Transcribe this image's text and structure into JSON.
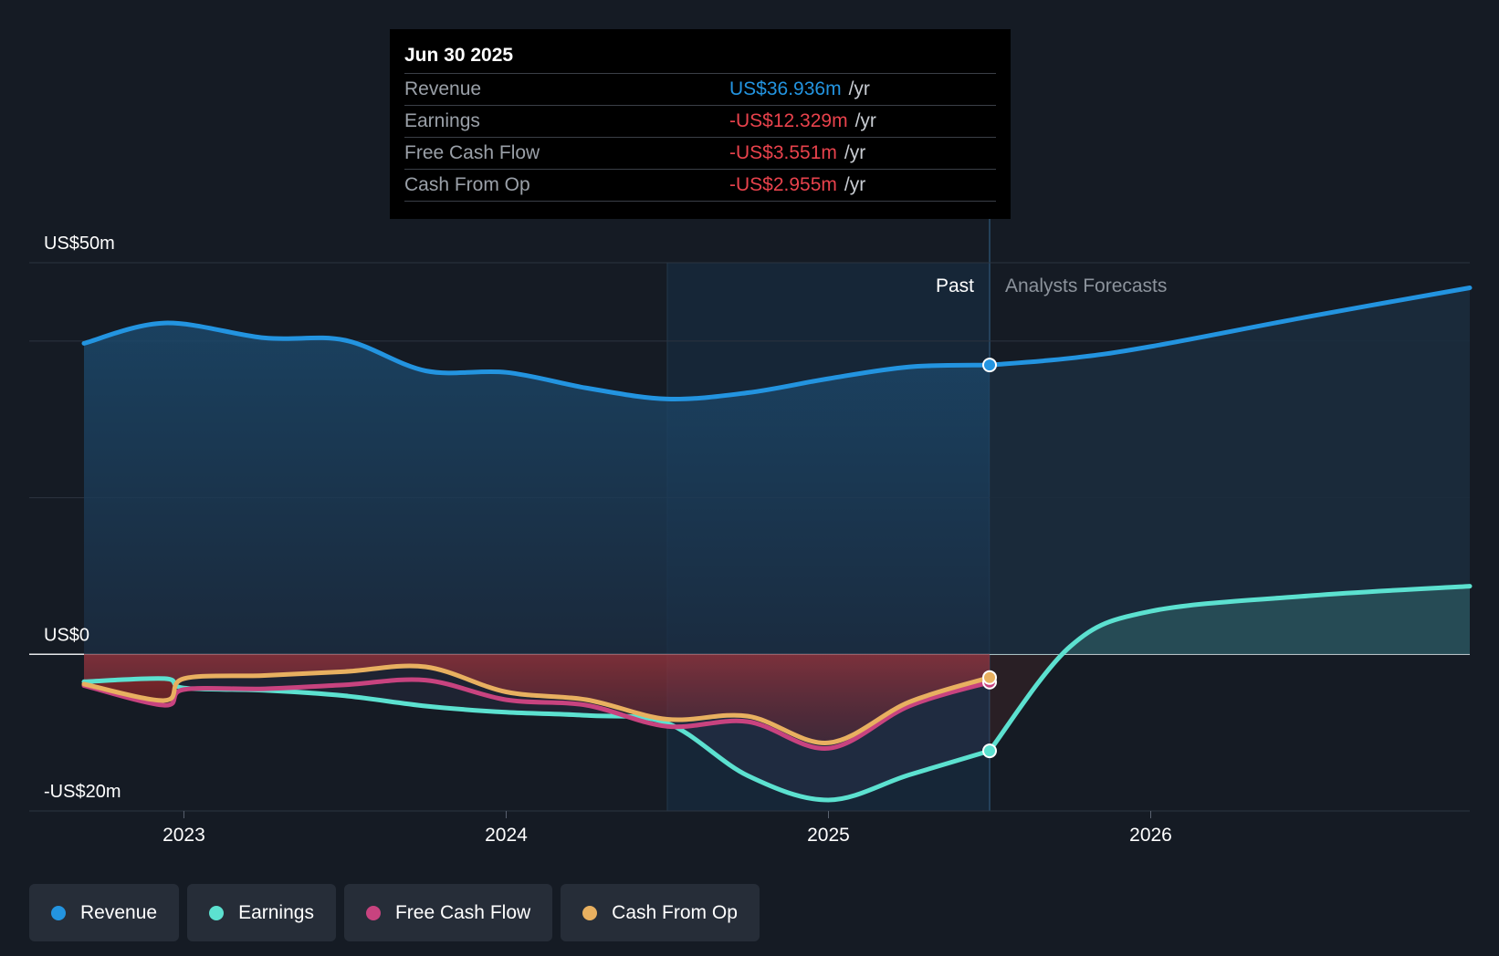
{
  "tooltip": {
    "date": "Jun 30 2025",
    "rows": [
      {
        "label": "Revenue",
        "value": "US$36.936m",
        "unit": "/yr",
        "color": "#2394e0"
      },
      {
        "label": "Earnings",
        "value": "-US$12.329m",
        "unit": "/yr",
        "color": "#e8424c"
      },
      {
        "label": "Free Cash Flow",
        "value": "-US$3.551m",
        "unit": "/yr",
        "color": "#e8424c"
      },
      {
        "label": "Cash From Op",
        "value": "-US$2.955m",
        "unit": "/yr",
        "color": "#e8424c"
      }
    ]
  },
  "legend": [
    {
      "label": "Revenue",
      "color": "#2394e0"
    },
    {
      "label": "Earnings",
      "color": "#5ce1d0"
    },
    {
      "label": "Free Cash Flow",
      "color": "#c8437f"
    },
    {
      "label": "Cash From Op",
      "color": "#e8b060"
    }
  ],
  "chart_data": {
    "type": "line",
    "title": "",
    "xlabel": "",
    "ylabel": "",
    "xlim": [
      2022.52,
      2026.99
    ],
    "ylim": [
      -20,
      50
    ],
    "y_tick_labels": [
      {
        "value": 50,
        "label": "US$50m"
      },
      {
        "value": 0,
        "label": "US$0"
      },
      {
        "value": -20,
        "label": "-US$20m"
      }
    ],
    "gridlines": [
      50,
      40,
      20,
      0,
      -20
    ],
    "x_ticks": [
      {
        "value": 2023,
        "label": "2023"
      },
      {
        "value": 2024,
        "label": "2024"
      },
      {
        "value": 2025,
        "label": "2025"
      },
      {
        "value": 2026,
        "label": "2026"
      }
    ],
    "past_label": "Past",
    "forecast_label": "Analysts Forecasts",
    "highlight_start": 2024.5,
    "past_end": 2025.5,
    "series": [
      {
        "name": "Revenue",
        "color": "#2394e0",
        "fill": true,
        "x": [
          2022.69,
          2022.94,
          2023.25,
          2023.5,
          2023.75,
          2024.0,
          2024.25,
          2024.5,
          2024.75,
          2025.0,
          2025.25,
          2025.5
        ],
        "values": [
          39.7,
          42.3,
          40.4,
          40.1,
          36.2,
          36.0,
          34.0,
          32.6,
          33.4,
          35.2,
          36.7,
          36.94
        ]
      },
      {
        "name": "Revenue forecast",
        "color": "#2394e0",
        "fill": true,
        "forecast": true,
        "x": [
          2025.5,
          2025.75,
          2026.0,
          2026.5,
          2026.99
        ],
        "values": [
          36.94,
          37.8,
          39.3,
          43.2,
          46.8
        ]
      },
      {
        "name": "Earnings",
        "color": "#5ce1d0",
        "x": [
          2022.69,
          2022.94,
          2023.0,
          2023.25,
          2023.5,
          2023.75,
          2024.0,
          2024.25,
          2024.5,
          2024.75,
          2025.0,
          2025.25,
          2025.5
        ],
        "values": [
          -3.5,
          -3.1,
          -4.3,
          -4.6,
          -5.3,
          -6.6,
          -7.4,
          -7.8,
          -8.8,
          -15.5,
          -18.6,
          -15.4,
          -12.33
        ]
      },
      {
        "name": "Earnings forecast",
        "color": "#5ce1d0",
        "fill": true,
        "forecast": true,
        "x": [
          2025.5,
          2025.75,
          2026.0,
          2026.5,
          2026.99
        ],
        "values": [
          -12.33,
          1.0,
          5.5,
          7.5,
          8.7
        ]
      },
      {
        "name": "Free Cash Flow",
        "color": "#c8437f",
        "x": [
          2022.69,
          2022.94,
          2023.0,
          2023.25,
          2023.5,
          2023.75,
          2024.0,
          2024.25,
          2024.5,
          2024.75,
          2025.0,
          2025.25,
          2025.5
        ],
        "values": [
          -4.0,
          -6.5,
          -4.5,
          -4.4,
          -3.9,
          -3.3,
          -5.8,
          -6.5,
          -9.2,
          -8.6,
          -12.0,
          -6.6,
          -3.55
        ]
      },
      {
        "name": "Cash From Op",
        "color": "#e8b060",
        "x": [
          2022.69,
          2022.94,
          2023.0,
          2023.25,
          2023.5,
          2023.75,
          2024.0,
          2024.25,
          2024.5,
          2024.75,
          2025.0,
          2025.25,
          2025.5
        ],
        "values": [
          -3.8,
          -5.9,
          -3.1,
          -2.7,
          -2.2,
          -1.6,
          -4.8,
          -5.8,
          -8.3,
          -7.9,
          -11.3,
          -6.1,
          -2.96
        ]
      }
    ]
  }
}
